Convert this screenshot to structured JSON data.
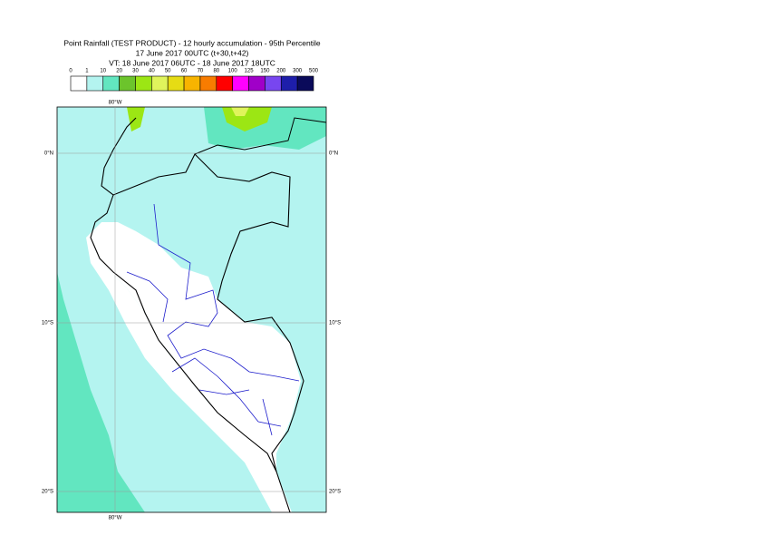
{
  "header": {
    "title": "Point Rainfall (TEST PRODUCT) - 12 hourly accumulation - 95th Percentile",
    "run": "17 June 2017 00UTC (t+30,t+42)",
    "valid": "VT: 18 June 2017 06UTC - 18 June 2017 18UTC"
  },
  "legend": {
    "labels": [
      "0",
      "1",
      "10",
      "20",
      "30",
      "40",
      "50",
      "60",
      "70",
      "80",
      "100",
      "125",
      "150",
      "200",
      "300",
      "500"
    ],
    "colors": [
      "#ffffff",
      "#b4f4f0",
      "#62e6c0",
      "#6cc42c",
      "#9ce614",
      "#e0f45c",
      "#e6dc14",
      "#f8b400",
      "#f87c00",
      "#ff0000",
      "#ff00ff",
      "#a000c8",
      "#7846f0",
      "#1e1eaa",
      "#0a0a5a"
    ]
  },
  "map": {
    "longitude_labels": [
      "80°W"
    ],
    "latitude_labels": [
      "0°N",
      "10°S",
      "20°S"
    ]
  }
}
